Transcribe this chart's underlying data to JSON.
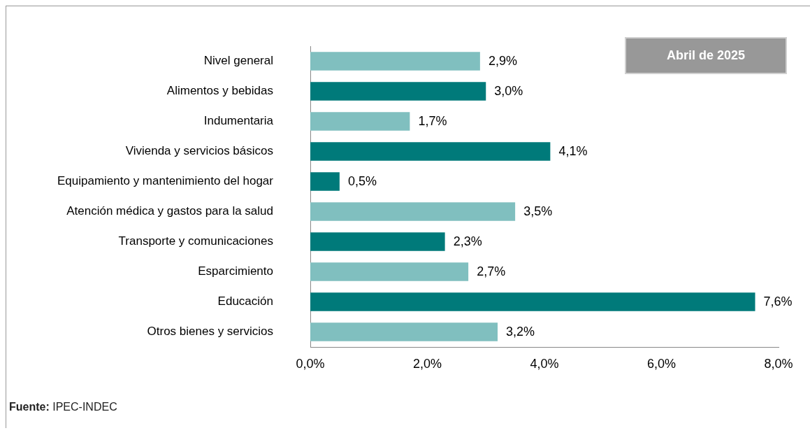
{
  "chart_data": {
    "type": "bar",
    "orientation": "horizontal",
    "subtitle": "Abril de 2025",
    "categories": [
      "Nivel general",
      "Alimentos y bebidas",
      "Indumentaria",
      "Vivienda y servicios básicos",
      "Equipamiento y mantenimiento del hogar",
      "Atención médica y gastos para la salud",
      "Transporte y comunicaciones",
      "Esparcimiento",
      "Educación",
      "Otros bienes y servicios"
    ],
    "values": [
      2.9,
      3.0,
      1.7,
      4.1,
      0.5,
      3.5,
      2.3,
      2.7,
      7.6,
      3.2
    ],
    "value_labels": [
      "2,9%",
      "3,0%",
      "1,7%",
      "4,1%",
      "0,5%",
      "3,5%",
      "2,3%",
      "2,7%",
      "7,6%",
      "3,2%"
    ],
    "colors": [
      "#80bfbf",
      "#007a7a",
      "#80bfbf",
      "#007a7a",
      "#007a7a",
      "#80bfbf",
      "#007a7a",
      "#80bfbf",
      "#007a7a",
      "#80bfbf"
    ],
    "xlim": [
      0,
      8
    ],
    "xticks": [
      {
        "value": 0,
        "label": "0,0%"
      },
      {
        "value": 2,
        "label": "2,0%"
      },
      {
        "value": 4,
        "label": "4,0%"
      },
      {
        "value": 6,
        "label": "6,0%"
      },
      {
        "value": 8,
        "label": "8,0%"
      }
    ],
    "grid": false,
    "legend": false,
    "annotations": [
      "Fuente: IPEC-INDEC"
    ]
  }
}
